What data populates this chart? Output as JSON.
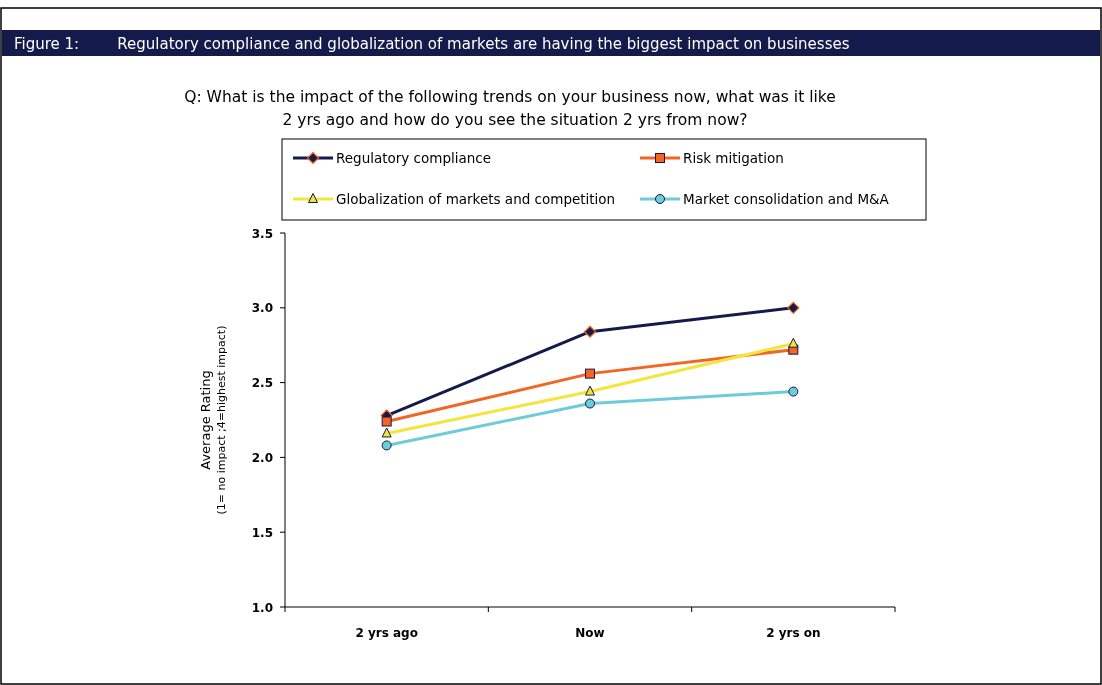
{
  "chart_data": {
    "type": "line",
    "title": "Figure 1:        Regulatory compliance and globalization of markets are having the biggest impact on businesses",
    "subtitle": "Q: What is the impact of the following trends on your business now, what was it like\n2 yrs ago and how do you see the situation 2 yrs from now?",
    "ylabel": "Average Rating\n(1= no impact ;4=highest impact)",
    "categories": [
      "2 yrs ago",
      "Now",
      "2 yrs on"
    ],
    "series": [
      {
        "name": "Regulatory compliance",
        "color": "#141a4a",
        "marker": "diamond",
        "values": [
          2.28,
          2.84,
          3.0
        ]
      },
      {
        "name": "Risk mitigation",
        "color": "#f26522",
        "marker": "square",
        "values": [
          2.24,
          2.56,
          2.72
        ]
      },
      {
        "name": "Globalization of markets and competition",
        "color": "#f2e63c",
        "marker": "triangle",
        "values": [
          2.16,
          2.44,
          2.76
        ]
      },
      {
        "name": "Market consolidation and M&A",
        "color": "#6ecbd8",
        "marker": "circle",
        "values": [
          2.08,
          2.36,
          2.44
        ]
      }
    ],
    "ylim": [
      1.0,
      3.5
    ],
    "yticks": [
      {
        "value": 1,
        "label": "1.0"
      },
      1.5,
      {
        "value": 2,
        "label": "2.0"
      },
      2.5,
      {
        "value": 3,
        "label": "3.0"
      },
      3.5
    ],
    "grid": false,
    "legend": "top",
    "line_style": "solid"
  }
}
